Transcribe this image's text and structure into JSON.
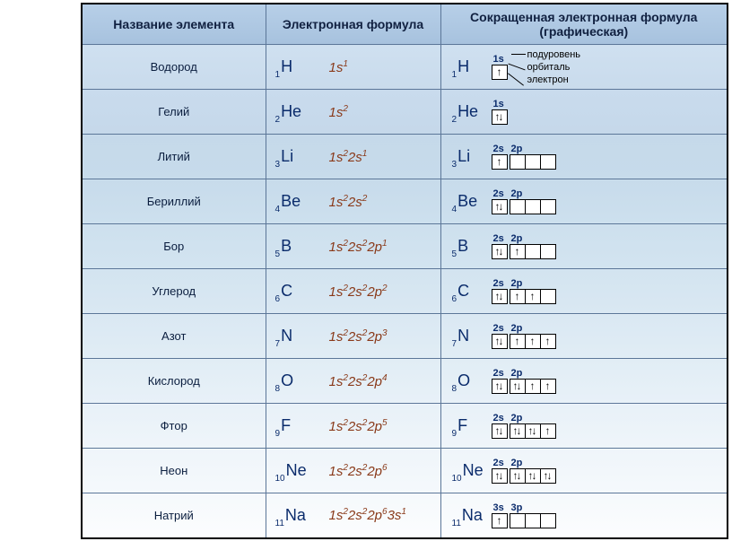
{
  "headers": {
    "name": "Название элемента",
    "formula": "Электронная формула",
    "graph": "Сокращенная электронная  формула (графическая)"
  },
  "annotations": {
    "sublevel": "подуровень",
    "orbital": "орбиталь",
    "electron": "электрон"
  },
  "row_gradients": [
    [
      "#cfe0f0",
      "#c9dbec"
    ],
    [
      "#c9dbed",
      "#c5d8ea"
    ],
    [
      "#c5d9ea",
      "#c7dbeb"
    ],
    [
      "#c7dbeb",
      "#cde0ee"
    ],
    [
      "#cde0ee",
      "#d3e4f0"
    ],
    [
      "#d3e4f0",
      "#dae8f3"
    ],
    [
      "#dae8f3",
      "#e1edf5"
    ],
    [
      "#e1edf5",
      "#e8f1f8"
    ],
    [
      "#e8f1f8",
      "#eff5fa"
    ],
    [
      "#eff5fa",
      "#f5f9fc"
    ],
    [
      "#f5f9fc",
      "#fcfdfe"
    ]
  ],
  "elements": [
    {
      "name": "Водород",
      "z": 1,
      "symbol": "H",
      "config": [
        [
          "1s",
          1
        ]
      ],
      "orbitals": [
        {
          "label": "1s",
          "boxes": [
            "↑"
          ]
        }
      ],
      "annotate": true
    },
    {
      "name": "Гелий",
      "z": 2,
      "symbol": "He",
      "config": [
        [
          "1s",
          2
        ]
      ],
      "orbitals": [
        {
          "label": "1s",
          "boxes": [
            "↑↓"
          ]
        }
      ]
    },
    {
      "name": "Литий",
      "z": 3,
      "symbol": "Li",
      "config": [
        [
          "1s",
          2
        ],
        [
          "2s",
          1
        ]
      ],
      "orbitals": [
        {
          "label": "2s",
          "boxes": [
            "↑"
          ]
        },
        {
          "label": "2p",
          "boxes": [
            "",
            "",
            ""
          ]
        }
      ]
    },
    {
      "name": "Бериллий",
      "z": 4,
      "symbol": "Be",
      "config": [
        [
          "1s",
          2
        ],
        [
          "2s",
          2
        ]
      ],
      "orbitals": [
        {
          "label": "2s",
          "boxes": [
            "↑↓"
          ]
        },
        {
          "label": "2p",
          "boxes": [
            "",
            "",
            ""
          ]
        }
      ]
    },
    {
      "name": "Бор",
      "z": 5,
      "symbol": "B",
      "config": [
        [
          "1s",
          2
        ],
        [
          "2s",
          2
        ],
        [
          "2p",
          1
        ]
      ],
      "orbitals": [
        {
          "label": "2s",
          "boxes": [
            "↑↓"
          ]
        },
        {
          "label": "2p",
          "boxes": [
            "↑",
            "",
            ""
          ]
        }
      ]
    },
    {
      "name": "Углерод",
      "z": 6,
      "symbol": "C",
      "config": [
        [
          "1s",
          2
        ],
        [
          "2s",
          2
        ],
        [
          "2p",
          2
        ]
      ],
      "orbitals": [
        {
          "label": "2s",
          "boxes": [
            "↑↓"
          ]
        },
        {
          "label": "2p",
          "boxes": [
            "↑",
            "↑",
            ""
          ]
        }
      ]
    },
    {
      "name": "Азот",
      "z": 7,
      "symbol": "N",
      "config": [
        [
          "1s",
          2
        ],
        [
          "2s",
          2
        ],
        [
          "2p",
          3
        ]
      ],
      "orbitals": [
        {
          "label": "2s",
          "boxes": [
            "↑↓"
          ]
        },
        {
          "label": "2p",
          "boxes": [
            "↑",
            "↑",
            "↑"
          ]
        }
      ]
    },
    {
      "name": "Кислород",
      "z": 8,
      "symbol": "O",
      "config": [
        [
          "1s",
          2
        ],
        [
          "2s",
          2
        ],
        [
          "2p",
          4
        ]
      ],
      "orbitals": [
        {
          "label": "2s",
          "boxes": [
            "↑↓"
          ]
        },
        {
          "label": "2p",
          "boxes": [
            "↑↓",
            "↑",
            "↑"
          ]
        }
      ]
    },
    {
      "name": "Фтор",
      "z": 9,
      "symbol": "F",
      "config": [
        [
          "1s",
          2
        ],
        [
          "2s",
          2
        ],
        [
          "2p",
          5
        ]
      ],
      "orbitals": [
        {
          "label": "2s",
          "boxes": [
            "↑↓"
          ]
        },
        {
          "label": "2p",
          "boxes": [
            "↑↓",
            "↑↓",
            "↑"
          ]
        }
      ]
    },
    {
      "name": "Неон",
      "z": 10,
      "symbol": "Ne",
      "config": [
        [
          "1s",
          2
        ],
        [
          "2s",
          2
        ],
        [
          "2p",
          6
        ]
      ],
      "orbitals": [
        {
          "label": "2s",
          "boxes": [
            "↑↓"
          ]
        },
        {
          "label": "2p",
          "boxes": [
            "↑↓",
            "↑↓",
            "↑↓"
          ]
        }
      ]
    },
    {
      "name": "Натрий",
      "z": 11,
      "symbol": "Na",
      "config": [
        [
          "1s",
          2
        ],
        [
          "2s",
          2
        ],
        [
          "2p",
          6
        ],
        [
          "3s",
          1
        ]
      ],
      "orbitals": [
        {
          "label": "3s",
          "boxes": [
            "↑"
          ]
        },
        {
          "label": "3p",
          "boxes": [
            "",
            "",
            ""
          ]
        }
      ]
    }
  ]
}
